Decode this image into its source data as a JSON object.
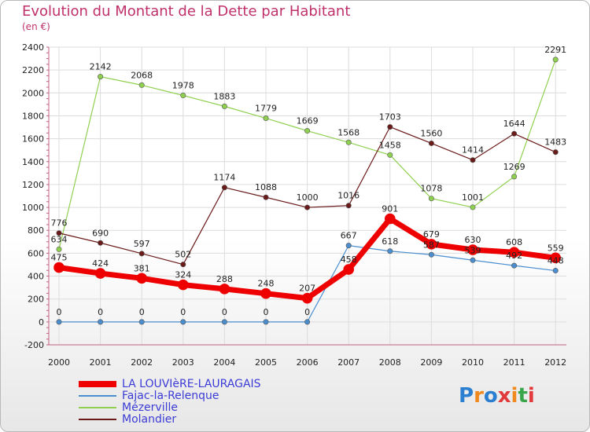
{
  "header": {
    "title": "Evolution du Montant de la Dette par Habitant",
    "unit": "(en €)"
  },
  "logo": {
    "letters": [
      "P",
      "r",
      "o",
      "x",
      "i",
      "t",
      "i"
    ],
    "colors": [
      "#2b7fd0",
      "#f08a1e",
      "#2b7fd0",
      "#e23a3a",
      "#f08a1e",
      "#3aa64a",
      "#e23a3a"
    ]
  },
  "chart_data": {
    "type": "line",
    "x": [
      "2000",
      "2001",
      "2002",
      "2003",
      "2004",
      "2005",
      "2006",
      "2007",
      "2008",
      "2009",
      "2010",
      "2011",
      "2012"
    ],
    "ylim": [
      -200,
      2400
    ],
    "yticks": [
      -200,
      0,
      200,
      400,
      600,
      800,
      1000,
      1200,
      1400,
      1600,
      1800,
      2000,
      2200,
      2400
    ],
    "grid": true,
    "legend_position": "bottom-left",
    "series": [
      {
        "name": "Fajac-la-Relenque",
        "color": "#4a8ed0",
        "width": 1.2,
        "values": [
          0,
          0,
          0,
          0,
          0,
          0,
          0,
          667,
          618,
          587,
          539,
          492,
          448
        ],
        "labels": [
          "0",
          "0",
          "0",
          "0",
          "0",
          "0",
          "0",
          "667",
          "618",
          "587",
          "539",
          "492",
          "448"
        ]
      },
      {
        "name": "Mézerville",
        "color": "#90d050",
        "width": 1.2,
        "values": [
          634,
          2142,
          2068,
          1978,
          1883,
          1779,
          1669,
          1568,
          1458,
          1078,
          1001,
          1269,
          2291
        ],
        "labels": [
          "634",
          "2142",
          "2068",
          "1978",
          "1883",
          "1779",
          "1669",
          "1568",
          "1458",
          "1078",
          "1001",
          "1269",
          "2291"
        ]
      },
      {
        "name": "Molandier",
        "color": "#6b1a1a",
        "width": 1.2,
        "values": [
          776,
          690,
          597,
          502,
          1174,
          1088,
          1000,
          1016,
          1703,
          1560,
          1414,
          1644,
          1483
        ],
        "labels": [
          "776",
          "690",
          "597",
          "502",
          "1174",
          "1088",
          "1000",
          "1016",
          "1703",
          "1560",
          "1414",
          "1644",
          "1483"
        ]
      },
      {
        "name": "LA LOUVIèRE-LAURAGAIS",
        "color": "#ee0000",
        "width": 7,
        "values": [
          475,
          424,
          381,
          324,
          288,
          248,
          207,
          458,
          901,
          679,
          630,
          608,
          559
        ],
        "labels": [
          "475",
          "424",
          "381",
          "324",
          "288",
          "248",
          "207",
          "458",
          "901",
          "679",
          "630",
          "608",
          "559"
        ]
      }
    ],
    "legend_order": [
      "LA LOUVIèRE-LAURAGAIS",
      "Fajac-la-Relenque",
      "Mézerville",
      "Molandier"
    ]
  }
}
